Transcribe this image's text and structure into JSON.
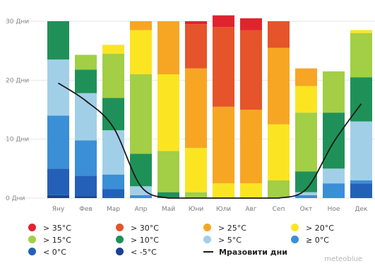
{
  "chart_data": {
    "type": "bar",
    "stacked": true,
    "categories": [
      "Яну",
      "Фев",
      "Мар",
      "Апр",
      "Май",
      "Юни",
      "Юли",
      "Авг",
      "Сеп",
      "Окт",
      "Ное",
      "Дек"
    ],
    "yticks": [
      "0 Дни",
      "10 Дни",
      "20 Дни",
      "30 Дни"
    ],
    "ylim": [
      0,
      30
    ],
    "grid": true,
    "colors": {
      "gt35": "#e0242e",
      "gt30": "#e5542a",
      "gt25": "#f7a623",
      "gt20": "#fbe522",
      "gt15": "#a2cf45",
      "gt10": "#1f9158",
      "gt5": "#a2cfe8",
      "ge0": "#3b8fd6",
      "lt0": "#2460b8",
      "ltm5": "#1b4190",
      "frost": "#1a1a1a"
    },
    "series": [
      {
        "key": "ltm5",
        "name": "< -5°C",
        "values": [
          0.5,
          0.3,
          0,
          0,
          0,
          0,
          0,
          0,
          0,
          0,
          0,
          0
        ]
      },
      {
        "key": "lt0",
        "name": "< 0°C",
        "values": [
          4.5,
          3.5,
          1.5,
          0,
          0,
          0,
          0,
          0,
          0,
          0,
          0,
          2.5
        ]
      },
      {
        "key": "ge0",
        "name": "≥ 0°C",
        "values": [
          9,
          6,
          2.5,
          0.5,
          0,
          0,
          0,
          0,
          0,
          0.5,
          2.5,
          0.5
        ]
      },
      {
        "key": "gt5",
        "name": "> 5°C",
        "values": [
          9.5,
          8,
          7.5,
          1.5,
          0,
          0,
          0,
          0,
          0,
          0.5,
          2.5,
          10
        ]
      },
      {
        "key": "gt10",
        "name": "> 10°C",
        "values": [
          6.5,
          4,
          5.5,
          5.5,
          1,
          0,
          0,
          0,
          0,
          3.5,
          9.5,
          7.5
        ]
      },
      {
        "key": "gt15",
        "name": "> 15°C",
        "values": [
          0,
          2.5,
          7.5,
          13.5,
          7,
          1,
          0,
          0,
          3,
          10,
          7,
          7.5
        ]
      },
      {
        "key": "gt20",
        "name": "> 20°C",
        "values": [
          0,
          0,
          1.5,
          7.5,
          13,
          7.5,
          2.5,
          2.5,
          9.5,
          4.5,
          0,
          0.5
        ]
      },
      {
        "key": "gt25",
        "name": "> 25°C",
        "values": [
          0,
          0,
          0,
          1.5,
          9,
          13.5,
          13,
          12.5,
          13,
          3,
          0,
          0
        ]
      },
      {
        "key": "gt30",
        "name": "> 30°C",
        "values": [
          0,
          0,
          0,
          0,
          0,
          7.5,
          13.5,
          13.5,
          4.5,
          0,
          0,
          0
        ]
      },
      {
        "key": "gt35",
        "name": "> 35°C",
        "values": [
          0,
          0,
          0,
          0,
          0,
          0.5,
          2,
          2,
          0,
          0,
          0,
          0
        ]
      }
    ],
    "frost_days": {
      "name": "Мразовити дни",
      "values": [
        19.5,
        16.5,
        12,
        2,
        0,
        0,
        0,
        0,
        0,
        1.5,
        9.5,
        16
      ]
    }
  },
  "legend": {
    "row1": [
      {
        "key": "gt35",
        "label": "> 35°C"
      },
      {
        "key": "gt30",
        "label": "> 30°C"
      },
      {
        "key": "gt25",
        "label": "> 25°C"
      },
      {
        "key": "gt20",
        "label": "> 20°C"
      }
    ],
    "row2": [
      {
        "key": "gt15",
        "label": "> 15°C"
      },
      {
        "key": "gt10",
        "label": "> 10°C"
      },
      {
        "key": "gt5",
        "label": "> 5°C"
      },
      {
        "key": "ge0",
        "label": "≥ 0°C"
      }
    ],
    "row3": [
      {
        "key": "lt0",
        "label": "< 0°C"
      },
      {
        "key": "ltm5",
        "label": "< -5°C"
      },
      {
        "key": "frost",
        "label": "Мразовити дни",
        "line": true
      }
    ]
  },
  "brand": "meteoblue"
}
